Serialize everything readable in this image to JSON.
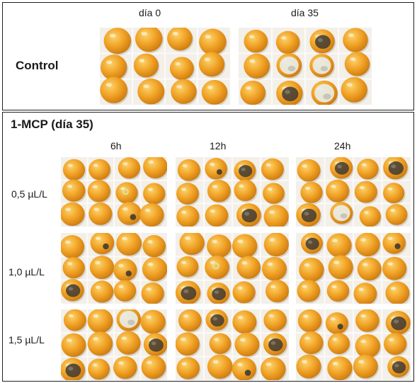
{
  "control": {
    "label": "Control",
    "columns": [
      "día 0",
      "día 35"
    ]
  },
  "treatment": {
    "title": "1-MCP  (día 35)",
    "columns": [
      "6h",
      "12h",
      "24h"
    ],
    "rows": [
      "0,5 µL/L",
      "1,0 µL/L",
      "1,5 µL/L"
    ]
  },
  "colors": {
    "fruit": "#f0a023",
    "fruit_highlight": "#fbd36b",
    "fruit_shadow": "#c97a10",
    "decay": "#3f3a33",
    "mold": "#e8ece6",
    "tray": "#f3efe9"
  }
}
